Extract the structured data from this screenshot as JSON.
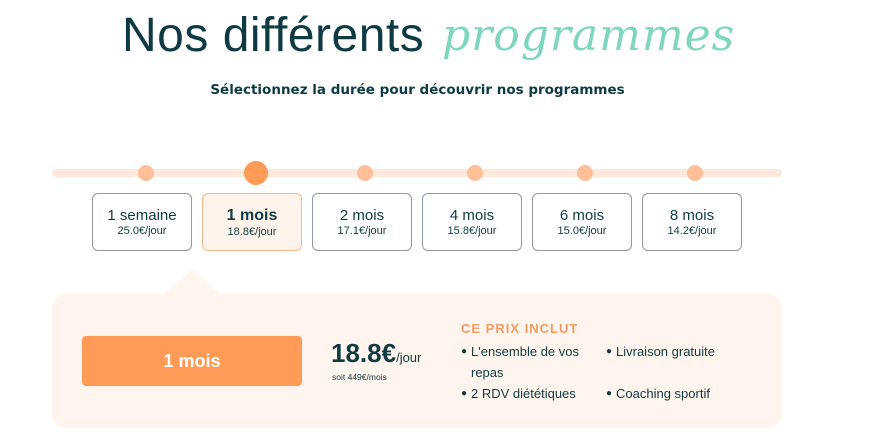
{
  "header": {
    "title_main": "Nos différents",
    "title_script": "programmes",
    "subtitle": "Sélectionnez la durée pour découvrir nos programmes"
  },
  "options": [
    {
      "label": "1 semaine",
      "price": "25.0€/jour",
      "active": false
    },
    {
      "label": "1 mois",
      "price": "18.8€/jour",
      "active": true
    },
    {
      "label": "2 mois",
      "price": "17.1€/jour",
      "active": false
    },
    {
      "label": "4 mois",
      "price": "15.8€/jour",
      "active": false
    },
    {
      "label": "6 mois",
      "price": "15.0€/jour",
      "active": false
    },
    {
      "label": "8 mois",
      "price": "14.2€/jour",
      "active": false
    }
  ],
  "selection": {
    "button_label": "1 mois",
    "price_amount": "18.8€",
    "price_unit": "/jour",
    "price_total": "soit 449€/mois",
    "includes_title": "CE PRIX INCLUT",
    "includes_col1": [
      "L'ensemble de vos repas",
      "2 RDV diététiques"
    ],
    "includes_col2": [
      "Livraison gratuite",
      "Coaching sportif"
    ]
  },
  "colors": {
    "accent": "#ff9b57",
    "accent_light": "#ffbf98",
    "script_green": "#7fd6bf",
    "dark_text": "#0e3b43",
    "panel_bg": "#fff5ee"
  }
}
